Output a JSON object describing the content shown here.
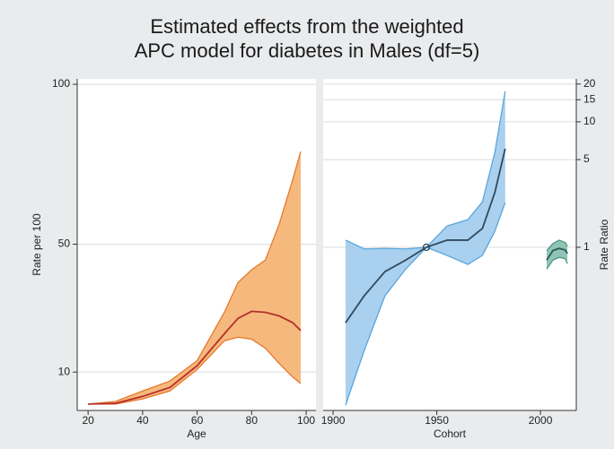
{
  "title": [
    "Estimated effects from the weighted",
    "APC model for diabetes in Males (df=5)"
  ],
  "chart_data": [
    {
      "type": "band-line",
      "xlabel": "Age",
      "ylabel": "Rate per 100",
      "x": [
        20,
        30,
        40,
        50,
        60,
        70,
        75,
        80,
        85,
        90,
        95,
        98
      ],
      "values": [
        0,
        0.2,
        2.4,
        5.2,
        12,
        22,
        26.8,
        29,
        28.7,
        27.6,
        25.5,
        23
      ],
      "upper": [
        0,
        0.8,
        4.1,
        7.2,
        13.6,
        28.7,
        38,
        42,
        45,
        56,
        70,
        79
      ],
      "lower": [
        0,
        0,
        1.6,
        4.1,
        10.8,
        19.8,
        20.9,
        20.3,
        17.5,
        12.8,
        8.5,
        6.4
      ],
      "color": "#b3302a",
      "band_color": "#f6b97d",
      "band_edge_color": "#e8782c",
      "xlim": [
        16,
        103.6
      ],
      "xticks": [
        20,
        40,
        60,
        80,
        100
      ],
      "ylim": [
        -2,
        101.7
      ],
      "yticks": [
        10,
        50,
        100
      ],
      "grid": true,
      "log_y": false
    },
    {
      "type": "band-line",
      "xlabel": "Cohort",
      "y2label": "Rate Ratio",
      "x": [
        1906,
        1915,
        1925,
        1935,
        1945,
        1955,
        1965,
        1972,
        1978,
        1983
      ],
      "values": [
        0.25,
        0.41,
        0.64,
        0.79,
        1,
        1.14,
        1.14,
        1.41,
        2.73,
        6.1
      ],
      "upper": [
        1.14,
        0.97,
        0.98,
        0.97,
        1,
        1.48,
        1.66,
        2.3,
        5.7,
        17.5
      ],
      "lower": [
        0.055,
        0.15,
        0.41,
        0.67,
        1,
        0.86,
        0.73,
        0.86,
        1.34,
        2.27
      ],
      "color": "#2f4a5e",
      "band_color": "#a9d0ee",
      "band_edge_color": "#5aa5dc",
      "reference_point": {
        "x": 1945,
        "value": 1
      },
      "period": {
        "x": [
          2003,
          2006,
          2009,
          2012,
          2013
        ],
        "values": [
          0.79,
          0.94,
          0.98,
          0.95,
          0.89
        ],
        "upper": [
          0.94,
          1.07,
          1.14,
          1.09,
          1.02
        ],
        "lower": [
          0.67,
          0.79,
          0.83,
          0.81,
          0.74
        ],
        "color": "#2e5a50",
        "band_color": "#8fc4b6",
        "band_edge_color": "#4d9a84"
      },
      "xlim": [
        1895.2,
        2017.3
      ],
      "xticks": [
        1900,
        1950,
        2000
      ],
      "y2lim": [
        0.05,
        22
      ],
      "y2ticks": [
        1,
        5,
        10,
        15,
        20
      ],
      "grid": true,
      "log_y": true
    }
  ]
}
